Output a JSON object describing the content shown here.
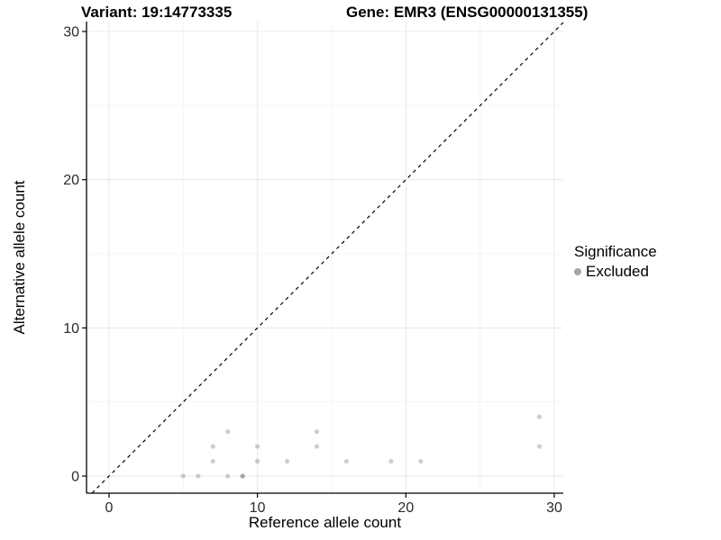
{
  "header": {
    "variant_title": "Variant: 19:14773335",
    "gene_title": "Gene: EMR3 (ENSG00000131355)"
  },
  "chart_data": {
    "type": "scatter",
    "title_left": "Variant: 19:14773335",
    "title_right": "Gene: EMR3 (ENSG00000131355)",
    "xlabel": "Reference allele count",
    "ylabel": "Alternative allele count",
    "xlim": [
      -1.5,
      30.6
    ],
    "ylim": [
      -1.2,
      30.7
    ],
    "x_ticks": [
      0,
      10,
      20,
      30
    ],
    "y_ticks": [
      0,
      10,
      20,
      30
    ],
    "x_minor_gridlines": [
      5,
      15,
      25
    ],
    "y_minor_gridlines": [
      5,
      15,
      25
    ],
    "grid": true,
    "identity_line": {
      "type": "y_equals_x",
      "style": "dashed",
      "color": "#000000"
    },
    "series": [
      {
        "name": "Excluded",
        "points": [
          [
            5,
            0
          ],
          [
            6,
            0
          ],
          [
            8,
            0
          ],
          [
            9,
            0
          ],
          [
            9,
            0
          ],
          [
            7,
            1
          ],
          [
            10,
            1
          ],
          [
            12,
            1
          ],
          [
            16,
            1
          ],
          [
            19,
            1
          ],
          [
            21,
            1
          ],
          [
            7,
            2
          ],
          [
            10,
            2
          ],
          [
            14,
            2
          ],
          [
            29,
            2
          ],
          [
            8,
            3
          ],
          [
            14,
            3
          ],
          [
            29,
            4
          ]
        ]
      }
    ],
    "legend": {
      "title": "Significance",
      "entries": [
        "Excluded"
      ],
      "position": "right"
    }
  },
  "colors": {
    "background": "#ffffff",
    "point_fill": "#4a4a4a",
    "point_opacity": "0.27",
    "legend_dot": "#a6a6a6",
    "grid_major": "#e8e8e8",
    "grid_minor": "#f4f4f4",
    "axis_line": "#000000",
    "tick_text": "#2b2b2b",
    "identity_line": "#000000"
  }
}
